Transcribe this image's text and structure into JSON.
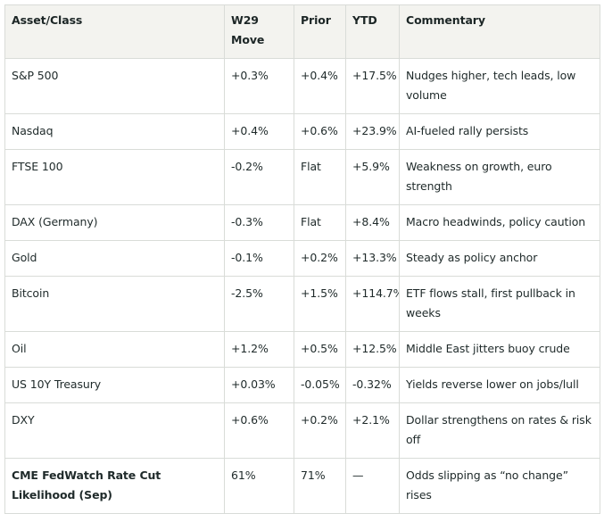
{
  "table": {
    "headers": [
      "Asset/Class",
      "W29 Move",
      "Prior",
      "YTD",
      "Commentary"
    ],
    "rows": [
      {
        "asset": "S&P 500",
        "move": "+0.3%",
        "prior": "+0.4%",
        "ytd": "+17.5%",
        "commentary": "Nudges higher, tech leads, low volume"
      },
      {
        "asset": "Nasdaq",
        "move": "+0.4%",
        "prior": "+0.6%",
        "ytd": "+23.9%",
        "commentary": "AI-fueled rally persists"
      },
      {
        "asset": "FTSE 100",
        "move": "-0.2%",
        "prior": "Flat",
        "ytd": "+5.9%",
        "commentary": "Weakness on growth, euro strength"
      },
      {
        "asset": "DAX (Germany)",
        "move": "-0.3%",
        "prior": "Flat",
        "ytd": "+8.4%",
        "commentary": "Macro headwinds, policy caution"
      },
      {
        "asset": "Gold",
        "move": "-0.1%",
        "prior": "+0.2%",
        "ytd": "+13.3%",
        "commentary": "Steady as policy anchor"
      },
      {
        "asset": "Bitcoin",
        "move": "-2.5%",
        "prior": "+1.5%",
        "ytd": "+114.7%",
        "commentary": "ETF flows stall, first pullback in weeks"
      },
      {
        "asset": "Oil",
        "move": "+1.2%",
        "prior": "+0.5%",
        "ytd": "+12.5%",
        "commentary": "Middle East jitters buoy crude"
      },
      {
        "asset": "US 10Y Treasury",
        "move": "+0.03%",
        "prior": "-0.05%",
        "ytd": "-0.32%",
        "commentary": "Yields reverse lower on jobs/lull"
      },
      {
        "asset": "DXY",
        "move": "+0.6%",
        "prior": "+0.2%",
        "ytd": "+2.1%",
        "commentary": "Dollar strengthens on rates & risk off"
      },
      {
        "asset": "CME FedWatch Rate Cut Likelihood (Sep)",
        "move": "61%",
        "prior": "71%",
        "ytd": "—",
        "commentary": "Odds slipping as “no change” rises"
      }
    ]
  }
}
